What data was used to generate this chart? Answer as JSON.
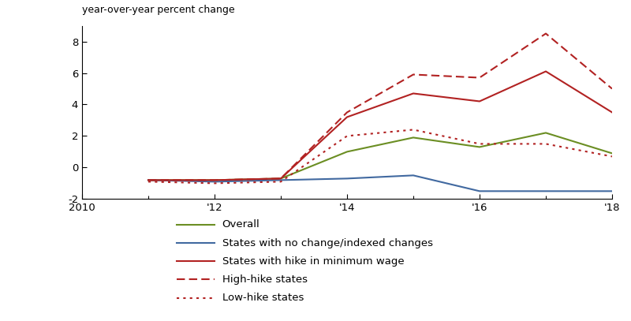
{
  "years": [
    2011,
    2012,
    2013,
    2014,
    2015,
    2016,
    2017,
    2018
  ],
  "overall": [
    -0.8,
    -0.8,
    -0.7,
    1.0,
    1.9,
    1.3,
    2.2,
    0.9
  ],
  "no_change": [
    -0.8,
    -0.9,
    -0.8,
    -0.7,
    -0.5,
    -1.5,
    -1.5,
    -1.5
  ],
  "hike_states": [
    -0.8,
    -0.8,
    -0.7,
    3.2,
    4.7,
    4.2,
    6.1,
    3.5
  ],
  "high_hike": [
    -0.8,
    -0.8,
    -0.7,
    3.5,
    5.9,
    5.7,
    8.5,
    5.0
  ],
  "low_hike": [
    -0.9,
    -1.0,
    -0.9,
    2.0,
    2.4,
    1.5,
    1.5,
    0.7
  ],
  "x_start": 2010,
  "x_end": 2018,
  "y_min": -2,
  "y_max": 9,
  "yticks": [
    -2,
    0,
    2,
    4,
    6,
    8
  ],
  "xtick_labels": [
    "2010",
    "'12",
    "'14",
    "'16",
    "'18"
  ],
  "xtick_positions": [
    2010,
    2012,
    2014,
    2016,
    2018
  ],
  "ylabel": "year-over-year percent change",
  "color_red": "#b22222",
  "color_green": "#6b8e23",
  "color_blue": "#4169a0",
  "legend_labels": [
    "Overall",
    "States with no change/indexed changes",
    "States with hike in minimum wage",
    "High-hike states",
    "Low-hike states"
  ],
  "fig_width": 8.0,
  "fig_height": 4.07,
  "dpi": 100
}
